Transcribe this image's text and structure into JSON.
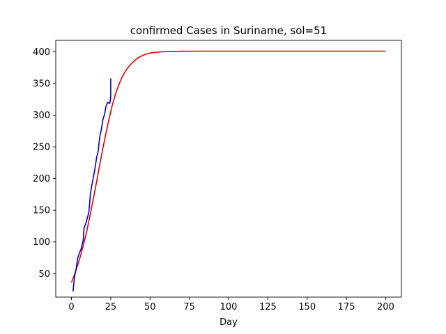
{
  "chart_data": {
    "type": "line",
    "title": "confirmed Cases in Suriname, sol=51",
    "xlabel": "Day",
    "ylabel": "",
    "xlim": [
      -10,
      210
    ],
    "ylim": [
      13,
      418
    ],
    "x_ticks": [
      0,
      25,
      50,
      75,
      100,
      125,
      150,
      175,
      200
    ],
    "y_ticks": [
      50,
      100,
      150,
      200,
      250,
      300,
      350,
      400
    ],
    "grid": false,
    "series": [
      {
        "color": "#e00000",
        "x": [
          0,
          2,
          4,
          6,
          8,
          10,
          12,
          14,
          16,
          18,
          20,
          22,
          24,
          26,
          28,
          30,
          32,
          35,
          38,
          42,
          46,
          50,
          55,
          60,
          70,
          80,
          100,
          125,
          150,
          175,
          200
        ],
        "y": [
          36,
          49,
          64,
          80,
          99,
          120,
          144,
          169,
          195,
          222,
          248,
          272,
          295,
          316,
          333,
          347,
          359,
          372,
          381,
          390,
          395,
          398,
          399.5,
          400.3,
          400.8,
          401,
          401,
          401,
          401,
          401,
          401
        ]
      },
      {
        "color": "#0000cc",
        "x": [
          1,
          2,
          3,
          4,
          5,
          6,
          7,
          7.5,
          8,
          9,
          10,
          11,
          11.5,
          12,
          13,
          14,
          15,
          16,
          17,
          18,
          19,
          20,
          21,
          22,
          23,
          24,
          24.5,
          25,
          25
        ],
        "y": [
          22,
          46,
          58,
          75,
          82,
          88,
          98,
          103,
          122,
          128,
          137,
          146,
          158,
          175,
          190,
          203,
          216,
          233,
          243,
          266,
          277,
          293,
          301,
          314,
          320,
          319,
          319,
          330,
          358
        ]
      }
    ]
  }
}
